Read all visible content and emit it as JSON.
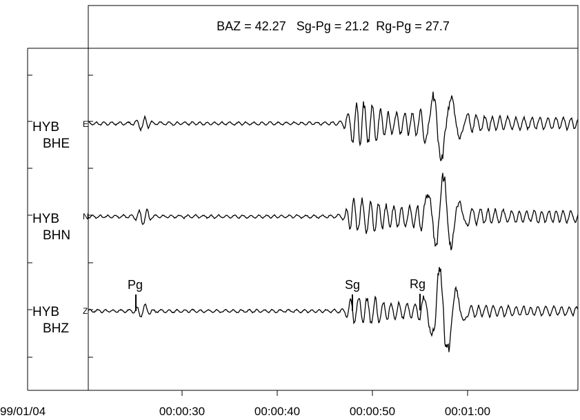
{
  "chart_data": {
    "type": "line",
    "title": "BAZ = 42.27   Sg-Pg = 21.2  Rg-Pg = 27.7",
    "date_label": "99/01/04",
    "x_ticks": [
      "00:00:30",
      "00:00:40",
      "00:00:50",
      "00:01:00"
    ],
    "channels": [
      {
        "station": "HYB",
        "component": "BHE",
        "marker": "E"
      },
      {
        "station": "HYB",
        "component": "BHN",
        "marker": "N"
      },
      {
        "station": "HYB",
        "component": "BHZ",
        "marker": "Z"
      }
    ],
    "phase_picks": [
      {
        "name": "Pg",
        "channel": 2
      },
      {
        "name": "Sg",
        "channel": 2
      },
      {
        "name": "Rg",
        "channel": 2
      }
    ]
  }
}
